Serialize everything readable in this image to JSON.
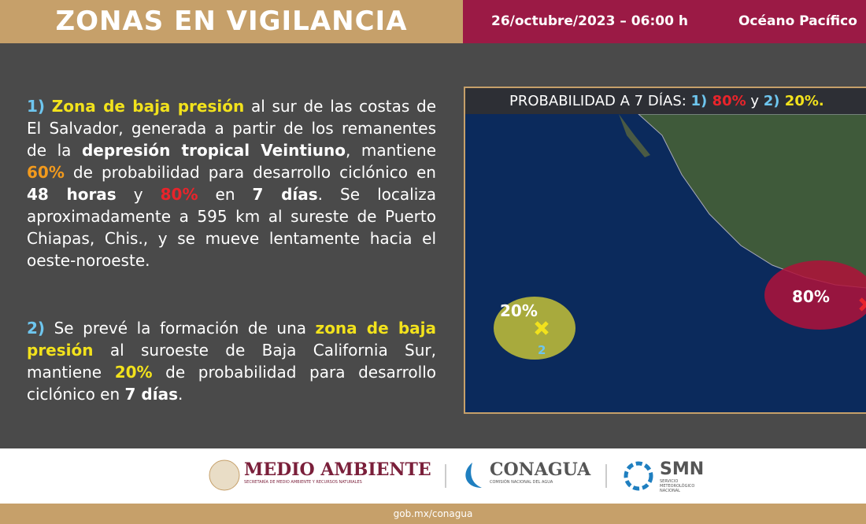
{
  "header": {
    "title": "ZONAS EN VIGILANCIA",
    "date": "26/octubre/2023 – 06:00 h",
    "region": "Océano Pacífico"
  },
  "paragraphs": [
    [
      {
        "text": "1)",
        "style": "num"
      },
      {
        "text": " ",
        "style": "plain"
      },
      {
        "text": "Zona de baja presión",
        "style": "yellow"
      },
      {
        "text": " al sur de las costas de El Salvador, generada a partir de los remanentes de la ",
        "style": "plain"
      },
      {
        "text": "depresión tropical Veintiuno",
        "style": "bold"
      },
      {
        "text": ", mantiene ",
        "style": "plain"
      },
      {
        "text": "60%",
        "style": "orange"
      },
      {
        "text": " de probabilidad para desarrollo ciclónico en ",
        "style": "plain"
      },
      {
        "text": "48 horas",
        "style": "bold"
      },
      {
        "text": " y ",
        "style": "plain"
      },
      {
        "text": "80%",
        "style": "red"
      },
      {
        "text": " en ",
        "style": "plain"
      },
      {
        "text": "7 días",
        "style": "bold"
      },
      {
        "text": ". Se localiza aproximadamente a 595 km al sureste de Puerto Chiapas, Chis., y se mueve lentamente hacia el oeste-noroeste.",
        "style": "plain"
      }
    ],
    [
      {
        "text": "2)",
        "style": "num"
      },
      {
        "text": " Se prevé la formación de una ",
        "style": "plain"
      },
      {
        "text": "zona de baja presión",
        "style": "yellow"
      },
      {
        "text": " al suroeste de Baja California Sur, mantiene ",
        "style": "plain"
      },
      {
        "text": "20%",
        "style": "yellow"
      },
      {
        "text": " de probabilidad para desarrollo ciclónico en ",
        "style": "plain"
      },
      {
        "text": "7 días",
        "style": "bold"
      },
      {
        "text": ".",
        "style": "plain"
      }
    ]
  ],
  "map": {
    "title": [
      {
        "text": "PROBABILIDAD A 7 DÍAS: ",
        "style": "plain"
      },
      {
        "text": "1)",
        "style": "num"
      },
      {
        "text": " 80%",
        "style": "red"
      },
      {
        "text": " y ",
        "style": "plain"
      },
      {
        "text": "2)",
        "style": "num"
      },
      {
        "text": " 20%.",
        "style": "yellow"
      }
    ],
    "zones": [
      {
        "label": "80%",
        "id": "1"
      },
      {
        "label": "20%",
        "id": "2"
      }
    ]
  },
  "footer": {
    "logos": [
      {
        "name": "MEDIO AMBIENTE",
        "sub": "SECRETARÍA DE MEDIO AMBIENTE Y RECURSOS NATURALES"
      },
      {
        "name": "CONAGUA",
        "sub": "COMISIÓN NACIONAL DEL AGUA"
      },
      {
        "name": "SMN",
        "sub": "SERVICIO METEOROLÓGICO NACIONAL"
      }
    ],
    "url": "gob.mx/conagua"
  }
}
